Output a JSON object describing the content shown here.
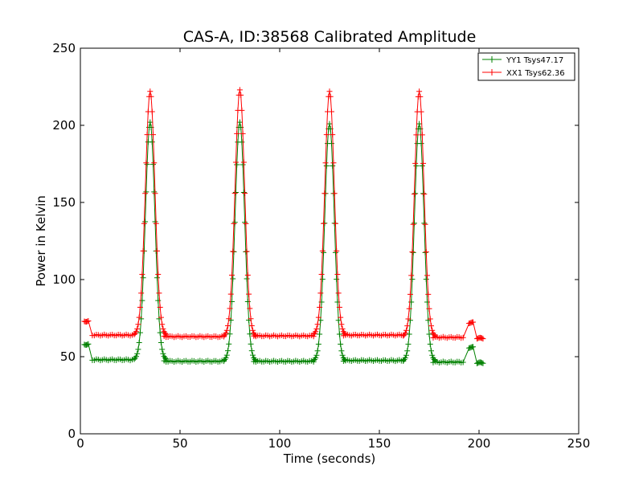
{
  "chart_data": {
    "type": "line",
    "title": "CAS-A, ID:38568 Calibrated Amplitude",
    "xlabel": "Time (seconds)",
    "ylabel": "Power in Kelvin",
    "xlim": [
      0,
      250
    ],
    "ylim": [
      0,
      250
    ],
    "xticks": [
      "0",
      "50",
      "100",
      "150",
      "200",
      "250"
    ],
    "yticks": [
      "0",
      "50",
      "100",
      "150",
      "200",
      "250"
    ],
    "grid": false,
    "legend_position": "top-right",
    "series": [
      {
        "name": "YY1 Tsys47.17",
        "color": "#008000",
        "marker": "plus",
        "baseline_segments": [
          {
            "start": 2,
            "end": 4,
            "value": 58,
            "step": 0.5
          },
          {
            "start": 6,
            "end": 27,
            "value": 48,
            "step": 1
          },
          {
            "start": 42,
            "end": 72,
            "value": 47,
            "step": 1
          },
          {
            "start": 87,
            "end": 117,
            "value": 47,
            "step": 1
          },
          {
            "start": 132,
            "end": 162,
            "value": 47.5,
            "step": 1
          },
          {
            "start": 177,
            "end": 192,
            "value": 46.5,
            "step": 1
          },
          {
            "start": 195,
            "end": 197,
            "value": 56,
            "step": 0.5
          },
          {
            "start": 199,
            "end": 202,
            "value": 46,
            "step": 0.5
          }
        ],
        "peaks": [
          {
            "center": 35,
            "peak": 202,
            "base": 48
          },
          {
            "center": 80,
            "peak": 202,
            "base": 47
          },
          {
            "center": 125,
            "peak": 201,
            "base": 47
          },
          {
            "center": 170,
            "peak": 201,
            "base": 47
          }
        ]
      },
      {
        "name": "XX1 Tsys62.36",
        "color": "#ff0000",
        "marker": "plus",
        "baseline_segments": [
          {
            "start": 2,
            "end": 4,
            "value": 73,
            "step": 0.5
          },
          {
            "start": 6,
            "end": 27,
            "value": 64,
            "step": 1
          },
          {
            "start": 42,
            "end": 72,
            "value": 63,
            "step": 1
          },
          {
            "start": 87,
            "end": 117,
            "value": 63.5,
            "step": 1
          },
          {
            "start": 132,
            "end": 162,
            "value": 64,
            "step": 1
          },
          {
            "start": 177,
            "end": 192,
            "value": 62.5,
            "step": 1
          },
          {
            "start": 195,
            "end": 197,
            "value": 72,
            "step": 0.5
          },
          {
            "start": 199,
            "end": 202,
            "value": 62,
            "step": 0.5
          }
        ],
        "peaks": [
          {
            "center": 35,
            "peak": 222,
            "base": 64
          },
          {
            "center": 80,
            "peak": 223,
            "base": 63
          },
          {
            "center": 125,
            "peak": 222,
            "base": 64
          },
          {
            "center": 170,
            "peak": 222,
            "base": 63
          }
        ]
      }
    ]
  }
}
